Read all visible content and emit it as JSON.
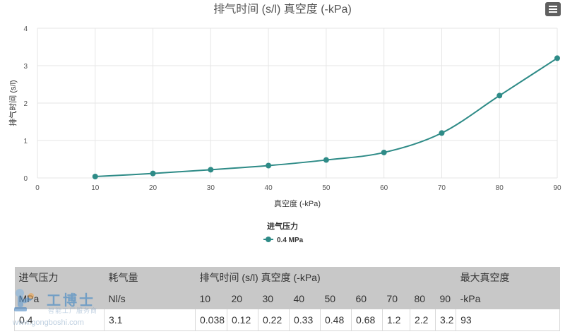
{
  "chart_data": {
    "type": "line",
    "title": "排气时间 (s/l) 真空度 (-kPa)",
    "xlabel": "真空度 (-kPa)",
    "ylabel": "排气时间 (s/l)",
    "xlim": [
      0,
      90
    ],
    "ylim": [
      0,
      4
    ],
    "x_ticks": [
      0,
      10,
      20,
      30,
      40,
      50,
      60,
      70,
      80,
      90
    ],
    "y_ticks": [
      0,
      1,
      2,
      3,
      4
    ],
    "grid": true,
    "legend_title": "进气压力",
    "legend_placement": "bottom-center",
    "series": [
      {
        "name": "0.4 MPa",
        "color": "#2e8b87",
        "x": [
          10,
          20,
          30,
          40,
          50,
          60,
          70,
          80,
          90
        ],
        "y": [
          0.038,
          0.12,
          0.22,
          0.33,
          0.48,
          0.68,
          1.2,
          2.2,
          3.2
        ]
      }
    ]
  },
  "menu_icon": "hamburger-menu-icon",
  "table": {
    "header_row1": [
      "进气压力",
      "耗气量",
      "排气时间 (s/l) 真空度 (-kPa)",
      "最大真空度"
    ],
    "header_row2": [
      "MPa",
      "Nl/s",
      "10",
      "20",
      "30",
      "40",
      "50",
      "60",
      "70",
      "80",
      "90",
      "-kPa"
    ],
    "data_row": [
      "0.4",
      "3.1",
      "0.038",
      "0.12",
      "0.22",
      "0.33",
      "0.48",
      "0.68",
      "1.2",
      "2.2",
      "3.2",
      "93"
    ]
  },
  "watermark": {
    "big": "工博士",
    "small": "智能工厂服务商",
    "url": "www.gongboshi.com"
  }
}
